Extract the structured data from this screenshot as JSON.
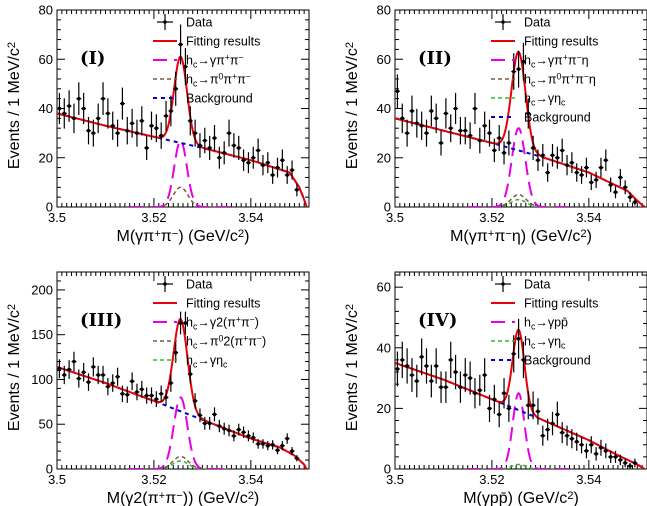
{
  "chart_data": [
    {
      "type": "scatter",
      "panel_label": "(I)",
      "xlabel": "M(γπ⁺π⁻) (GeV/c²)",
      "ylabel": "Events / 1 MeV/c²",
      "xlim": [
        3.5,
        3.552
      ],
      "ylim": [
        0,
        80
      ],
      "x_ticks": [
        "3.5",
        "3.52",
        "3.54"
      ],
      "y_ticks": [
        "0",
        "20",
        "40",
        "60",
        "80"
      ],
      "legend": [
        "Data",
        "Fitting results",
        "h_c→γπ⁺π⁻",
        "h_c→π⁰π⁺π⁻",
        "Background"
      ],
      "legend_position": "top-right",
      "background": {
        "x": [
          3.5,
          3.51,
          3.52,
          3.53,
          3.54,
          3.548,
          3.55,
          3.551,
          3.5515
        ],
        "y": [
          38,
          33,
          28.5,
          24,
          19,
          14,
          8,
          3,
          0
        ]
      },
      "signal": {
        "mean": 3.5255,
        "sigma": 0.0013,
        "peak": 27
      },
      "secondary": {
        "mean": 3.5255,
        "sigma": 0.0015,
        "peak": 8
      },
      "data": [
        [
          3.5005,
          40
        ],
        [
          3.5015,
          38
        ],
        [
          3.5025,
          41
        ],
        [
          3.5035,
          36
        ],
        [
          3.5045,
          44
        ],
        [
          3.5055,
          40
        ],
        [
          3.5065,
          31
        ],
        [
          3.5075,
          30
        ],
        [
          3.5085,
          36
        ],
        [
          3.5095,
          44
        ],
        [
          3.5105,
          38
        ],
        [
          3.5115,
          33
        ],
        [
          3.5125,
          30
        ],
        [
          3.5135,
          42
        ],
        [
          3.5145,
          31
        ],
        [
          3.5155,
          34
        ],
        [
          3.5165,
          30
        ],
        [
          3.5175,
          35
        ],
        [
          3.5185,
          24
        ],
        [
          3.5195,
          33
        ],
        [
          3.5205,
          32
        ],
        [
          3.5215,
          29
        ],
        [
          3.5225,
          37
        ],
        [
          3.5235,
          39
        ],
        [
          3.5245,
          48
        ],
        [
          3.5255,
          66
        ],
        [
          3.5265,
          57
        ],
        [
          3.5275,
          35
        ],
        [
          3.5285,
          30
        ],
        [
          3.5295,
          25
        ],
        [
          3.5305,
          27
        ],
        [
          3.5315,
          24
        ],
        [
          3.5325,
          28
        ],
        [
          3.5335,
          20
        ],
        [
          3.5345,
          22
        ],
        [
          3.5355,
          30
        ],
        [
          3.5365,
          25
        ],
        [
          3.5375,
          24
        ],
        [
          3.5385,
          19
        ],
        [
          3.5395,
          18
        ],
        [
          3.5405,
          20
        ],
        [
          3.5415,
          23
        ],
        [
          3.5425,
          17
        ],
        [
          3.5435,
          18
        ],
        [
          3.5445,
          13
        ],
        [
          3.5455,
          16
        ],
        [
          3.5465,
          19
        ],
        [
          3.5475,
          13
        ],
        [
          3.5485,
          15
        ],
        [
          3.5495,
          7
        ]
      ]
    },
    {
      "type": "scatter",
      "panel_label": "(II)",
      "xlabel": "M(γπ⁺π⁻η) (GeV/c²)",
      "ylabel": "Events / 1 MeV/c²",
      "xlim": [
        3.5,
        3.552
      ],
      "ylim": [
        0,
        80
      ],
      "x_ticks": [
        "3.5",
        "3.52",
        "3.54"
      ],
      "y_ticks": [
        "0",
        "20",
        "40",
        "60",
        "80"
      ],
      "legend": [
        "Data",
        "Fitting results",
        "h_c→γπ⁺π⁻η",
        "h_c→π⁰π⁺π⁻η",
        "h_c→γη_c",
        "Background"
      ],
      "legend_position": "top-right",
      "background": {
        "x": [
          3.5,
          3.51,
          3.52,
          3.53,
          3.54,
          3.548,
          3.55,
          3.5515
        ],
        "y": [
          36,
          31,
          26,
          20.5,
          14,
          6.5,
          2.5,
          0
        ]
      },
      "signal": {
        "mean": 3.5255,
        "sigma": 0.0014,
        "peak": 32
      },
      "secondary": {
        "mean": 3.5255,
        "sigma": 0.0016,
        "peak": 5
      },
      "tertiary": {
        "mean": 3.5255,
        "sigma": 0.0016,
        "peak": 3
      },
      "data": [
        [
          3.5005,
          47
        ],
        [
          3.5015,
          36
        ],
        [
          3.5025,
          30
        ],
        [
          3.5035,
          39
        ],
        [
          3.5045,
          34
        ],
        [
          3.5055,
          33
        ],
        [
          3.5065,
          30
        ],
        [
          3.5075,
          39
        ],
        [
          3.5085,
          36
        ],
        [
          3.5095,
          26
        ],
        [
          3.5105,
          38
        ],
        [
          3.5115,
          32
        ],
        [
          3.5125,
          40
        ],
        [
          3.5135,
          31
        ],
        [
          3.5145,
          31
        ],
        [
          3.5155,
          29
        ],
        [
          3.5165,
          40
        ],
        [
          3.5175,
          27
        ],
        [
          3.5185,
          33
        ],
        [
          3.5195,
          30
        ],
        [
          3.5205,
          23
        ],
        [
          3.5215,
          28
        ],
        [
          3.5225,
          22
        ],
        [
          3.5235,
          26
        ],
        [
          3.5245,
          55
        ],
        [
          3.5255,
          56
        ],
        [
          3.5265,
          59
        ],
        [
          3.5275,
          38
        ],
        [
          3.5285,
          24
        ],
        [
          3.5295,
          19
        ],
        [
          3.5305,
          21
        ],
        [
          3.5315,
          14
        ],
        [
          3.5325,
          21
        ],
        [
          3.5335,
          20
        ],
        [
          3.5345,
          23
        ],
        [
          3.5355,
          17
        ],
        [
          3.5365,
          18
        ],
        [
          3.5375,
          14
        ],
        [
          3.5385,
          13
        ],
        [
          3.5395,
          16
        ],
        [
          3.5405,
          10
        ],
        [
          3.5415,
          11
        ],
        [
          3.5425,
          16
        ],
        [
          3.5435,
          19
        ],
        [
          3.5445,
          9
        ],
        [
          3.5455,
          6
        ],
        [
          3.5465,
          12
        ],
        [
          3.5475,
          8
        ],
        [
          3.5485,
          4
        ],
        [
          3.5495,
          2
        ]
      ]
    },
    {
      "type": "scatter",
      "panel_label": "(III)",
      "xlabel": "M(γ2(π⁺π⁻)) (GeV/c²)",
      "ylabel": "Events / 1 MeV/c²",
      "xlim": [
        3.5,
        3.552
      ],
      "ylim": [
        0,
        220
      ],
      "x_ticks": [
        "3.5",
        "3.52",
        "3.54"
      ],
      "y_ticks": [
        "0",
        "50",
        "100",
        "150",
        "200"
      ],
      "legend": [
        "Data",
        "Fitting results",
        "h_c→γ2(π⁺π⁻)",
        "h_c→π⁰2(π⁺π⁻)",
        "h_c→γη_c"
      ],
      "legend_position": "top-right",
      "background": {
        "x": [
          3.5,
          3.51,
          3.52,
          3.53,
          3.54,
          3.546,
          3.549,
          3.551,
          3.5515
        ],
        "y": [
          114,
          96,
          76,
          55,
          34,
          24,
          15,
          5,
          0
        ]
      },
      "signal": {
        "mean": 3.5255,
        "sigma": 0.0014,
        "peak": 80
      },
      "secondary": {
        "mean": 3.5255,
        "sigma": 0.0016,
        "peak": 14
      },
      "tertiary": {
        "mean": 3.5255,
        "sigma": 0.0016,
        "peak": 9
      },
      "data": [
        [
          3.5005,
          112
        ],
        [
          3.5015,
          105
        ],
        [
          3.5025,
          111
        ],
        [
          3.5035,
          120
        ],
        [
          3.5045,
          101
        ],
        [
          3.5055,
          108
        ],
        [
          3.5065,
          97
        ],
        [
          3.5075,
          114
        ],
        [
          3.5085,
          105
        ],
        [
          3.5095,
          105
        ],
        [
          3.5105,
          92
        ],
        [
          3.5115,
          96
        ],
        [
          3.5125,
          103
        ],
        [
          3.5135,
          84
        ],
        [
          3.5145,
          83
        ],
        [
          3.5155,
          98
        ],
        [
          3.5165,
          86
        ],
        [
          3.5175,
          89
        ],
        [
          3.5185,
          82
        ],
        [
          3.5195,
          82
        ],
        [
          3.5205,
          78
        ],
        [
          3.5215,
          84
        ],
        [
          3.5225,
          80
        ],
        [
          3.5235,
          96
        ],
        [
          3.5245,
          130
        ],
        [
          3.5255,
          163
        ],
        [
          3.5265,
          163
        ],
        [
          3.5275,
          106
        ],
        [
          3.5285,
          76
        ],
        [
          3.5295,
          60
        ],
        [
          3.5305,
          51
        ],
        [
          3.5315,
          51
        ],
        [
          3.5325,
          61
        ],
        [
          3.5335,
          48
        ],
        [
          3.5345,
          45
        ],
        [
          3.5355,
          43
        ],
        [
          3.5365,
          37
        ],
        [
          3.5375,
          44
        ],
        [
          3.5385,
          41
        ],
        [
          3.5395,
          37
        ],
        [
          3.5405,
          35
        ],
        [
          3.5415,
          28
        ],
        [
          3.5425,
          28
        ],
        [
          3.5435,
          26
        ],
        [
          3.5445,
          27
        ],
        [
          3.5455,
          21
        ],
        [
          3.5465,
          26
        ],
        [
          3.5475,
          34
        ],
        [
          3.5485,
          20
        ],
        [
          3.5495,
          12
        ]
      ]
    },
    {
      "type": "scatter",
      "panel_label": "(IV)",
      "xlabel": "M(γpp̄) (GeV/c²)",
      "ylabel": "Events / 1 MeV/c²",
      "xlim": [
        3.5,
        3.552
      ],
      "ylim": [
        0,
        65
      ],
      "x_ticks": [
        "3.5",
        "3.52",
        "3.54"
      ],
      "y_ticks": [
        "0",
        "20",
        "40",
        "60"
      ],
      "legend": [
        "Data",
        "Fitting results",
        "h_c→γpp̄",
        "h_c→γη_c",
        "Background"
      ],
      "legend_position": "top-right",
      "background": {
        "x": [
          3.5,
          3.51,
          3.52,
          3.53,
          3.54,
          3.546,
          3.55,
          3.5515
        ],
        "y": [
          35,
          29.5,
          23,
          16.5,
          9.5,
          4.5,
          1.5,
          0
        ]
      },
      "signal": {
        "mean": 3.5255,
        "sigma": 0.0012,
        "peak": 25
      },
      "secondary": {
        "mean": 3.5255,
        "sigma": 0.0014,
        "peak": 1.5
      },
      "data": [
        [
          3.5005,
          33
        ],
        [
          3.5015,
          36
        ],
        [
          3.5025,
          34
        ],
        [
          3.5035,
          31
        ],
        [
          3.5045,
          29
        ],
        [
          3.5055,
          37
        ],
        [
          3.5065,
          34
        ],
        [
          3.5075,
          29
        ],
        [
          3.5085,
          34
        ],
        [
          3.5095,
          27
        ],
        [
          3.5105,
          27
        ],
        [
          3.5115,
          36
        ],
        [
          3.5125,
          32
        ],
        [
          3.5135,
          27
        ],
        [
          3.5145,
          31
        ],
        [
          3.5155,
          30
        ],
        [
          3.5165,
          25
        ],
        [
          3.5175,
          26
        ],
        [
          3.5185,
          31
        ],
        [
          3.5195,
          20
        ],
        [
          3.5205,
          23
        ],
        [
          3.5215,
          18
        ],
        [
          3.5225,
          25
        ],
        [
          3.5235,
          20
        ],
        [
          3.5245,
          38
        ],
        [
          3.5255,
          43
        ],
        [
          3.5265,
          36
        ],
        [
          3.5275,
          21
        ],
        [
          3.5285,
          21
        ],
        [
          3.5295,
          19
        ],
        [
          3.5305,
          11
        ],
        [
          3.5315,
          13
        ],
        [
          3.5325,
          15
        ],
        [
          3.5335,
          18
        ],
        [
          3.5345,
          12
        ],
        [
          3.5355,
          11
        ],
        [
          3.5365,
          10
        ],
        [
          3.5375,
          9
        ],
        [
          3.5385,
          8
        ],
        [
          3.5395,
          6
        ],
        [
          3.5405,
          8
        ],
        [
          3.5415,
          5
        ],
        [
          3.5425,
          7
        ],
        [
          3.5435,
          6
        ],
        [
          3.5445,
          4
        ],
        [
          3.5455,
          4
        ],
        [
          3.5465,
          3
        ],
        [
          3.5475,
          2
        ],
        [
          3.5485,
          1
        ],
        [
          3.5495,
          2
        ]
      ]
    }
  ],
  "colors": {
    "data": "#000000",
    "fit": "#e8000b",
    "signal": "#e600e6",
    "secondary": "#7f5a3a",
    "tertiary": "#2db82d",
    "background": "#0000cc"
  }
}
